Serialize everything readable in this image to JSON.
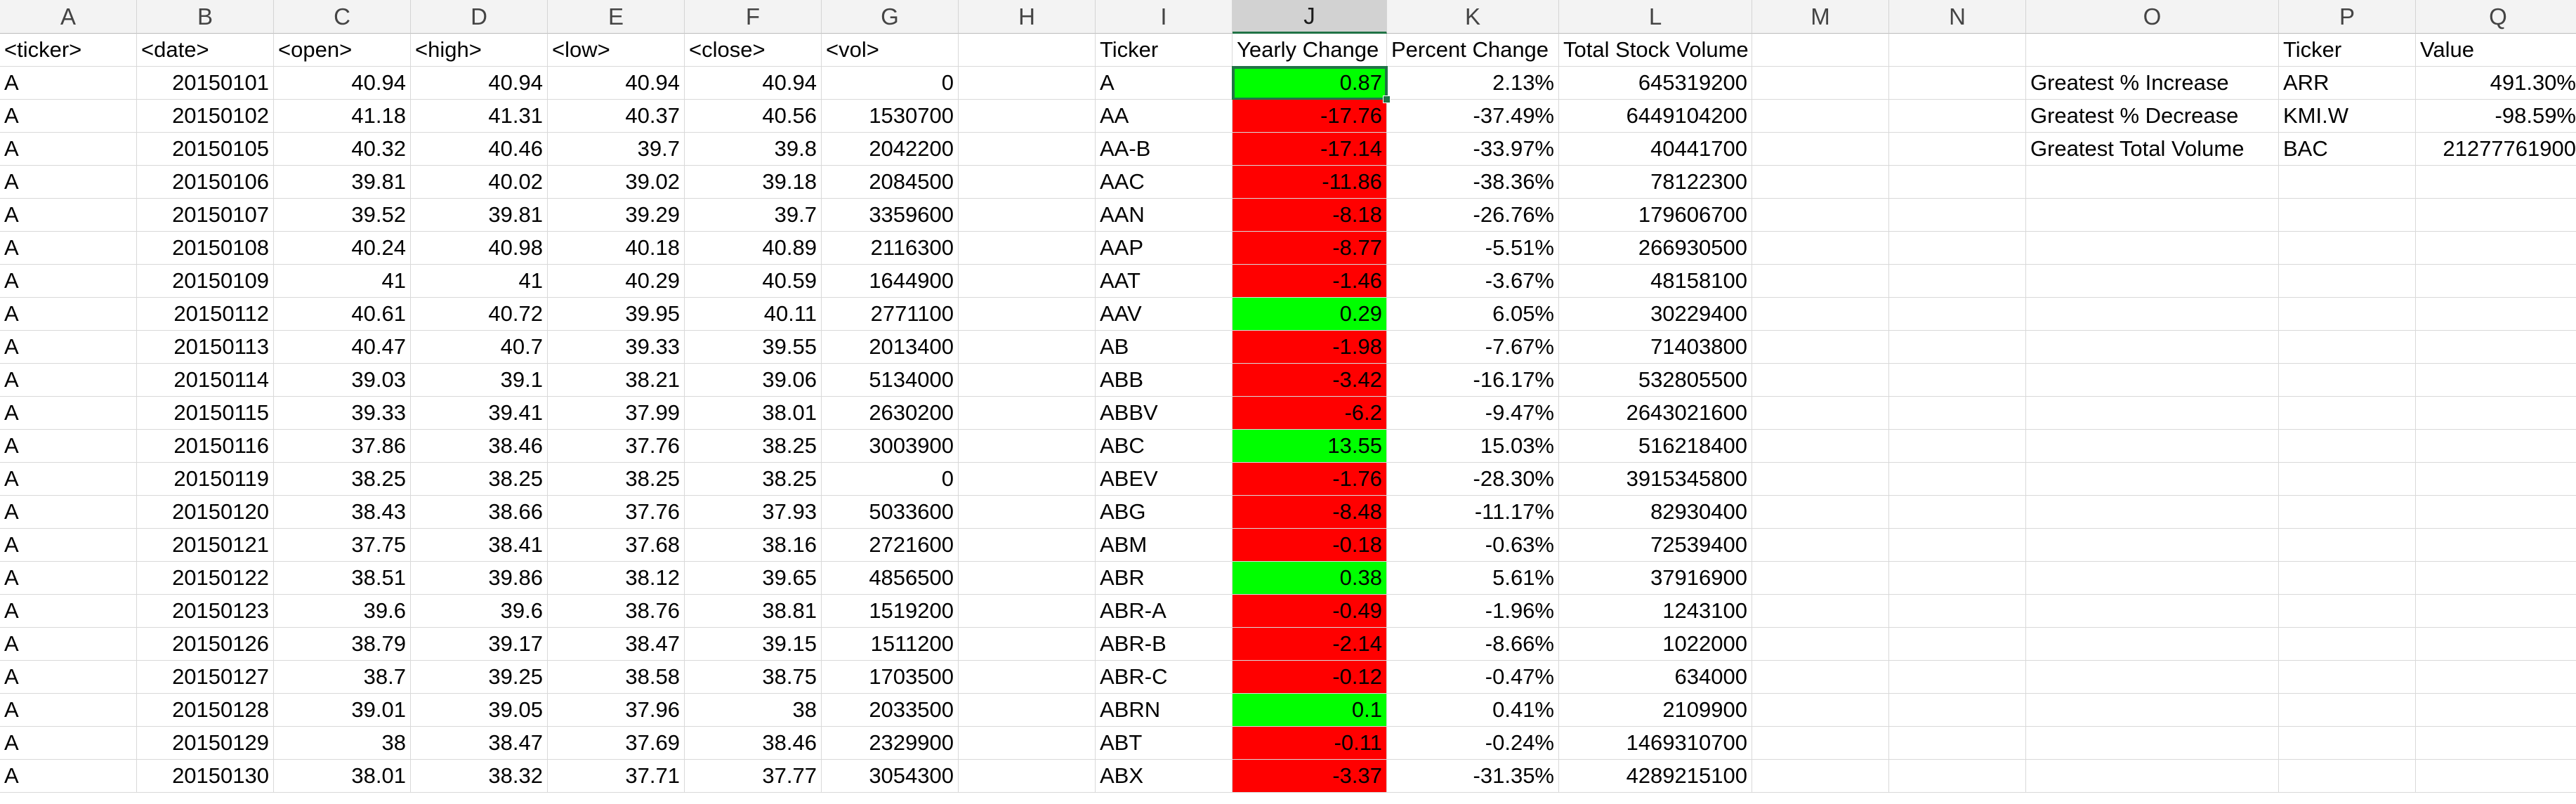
{
  "column_headers": [
    "A",
    "B",
    "C",
    "D",
    "E",
    "F",
    "G",
    "H",
    "I",
    "J",
    "K",
    "L",
    "M",
    "N",
    "O",
    "P",
    "Q"
  ],
  "selected_column": "J",
  "active_cell": "J2",
  "colors": {
    "positive": "#00ff00",
    "negative": "#ff0000",
    "selection": "#217346"
  },
  "raw_data": {
    "headers": [
      "<ticker>",
      "<date>",
      "<open>",
      "<high>",
      "<low>",
      "<close>",
      "<vol>"
    ],
    "rows": [
      [
        "A",
        "20150101",
        "40.94",
        "40.94",
        "40.94",
        "40.94",
        "0"
      ],
      [
        "A",
        "20150102",
        "41.18",
        "41.31",
        "40.37",
        "40.56",
        "1530700"
      ],
      [
        "A",
        "20150105",
        "40.32",
        "40.46",
        "39.7",
        "39.8",
        "2042200"
      ],
      [
        "A",
        "20150106",
        "39.81",
        "40.02",
        "39.02",
        "39.18",
        "2084500"
      ],
      [
        "A",
        "20150107",
        "39.52",
        "39.81",
        "39.29",
        "39.7",
        "3359600"
      ],
      [
        "A",
        "20150108",
        "40.24",
        "40.98",
        "40.18",
        "40.89",
        "2116300"
      ],
      [
        "A",
        "20150109",
        "41",
        "41",
        "40.29",
        "40.59",
        "1644900"
      ],
      [
        "A",
        "20150112",
        "40.61",
        "40.72",
        "39.95",
        "40.11",
        "2771100"
      ],
      [
        "A",
        "20150113",
        "40.47",
        "40.7",
        "39.33",
        "39.55",
        "2013400"
      ],
      [
        "A",
        "20150114",
        "39.03",
        "39.1",
        "38.21",
        "39.06",
        "5134000"
      ],
      [
        "A",
        "20150115",
        "39.33",
        "39.41",
        "37.99",
        "38.01",
        "2630200"
      ],
      [
        "A",
        "20150116",
        "37.86",
        "38.46",
        "37.76",
        "38.25",
        "3003900"
      ],
      [
        "A",
        "20150119",
        "38.25",
        "38.25",
        "38.25",
        "38.25",
        "0"
      ],
      [
        "A",
        "20150120",
        "38.43",
        "38.66",
        "37.76",
        "37.93",
        "5033600"
      ],
      [
        "A",
        "20150121",
        "37.75",
        "38.41",
        "37.68",
        "38.16",
        "2721600"
      ],
      [
        "A",
        "20150122",
        "38.51",
        "39.86",
        "38.12",
        "39.65",
        "4856500"
      ],
      [
        "A",
        "20150123",
        "39.6",
        "39.6",
        "38.76",
        "38.81",
        "1519200"
      ],
      [
        "A",
        "20150126",
        "38.79",
        "39.17",
        "38.47",
        "39.15",
        "1511200"
      ],
      [
        "A",
        "20150127",
        "38.7",
        "39.25",
        "38.58",
        "38.75",
        "1703500"
      ],
      [
        "A",
        "20150128",
        "39.01",
        "39.05",
        "37.96",
        "38",
        "2033500"
      ],
      [
        "A",
        "20150129",
        "38",
        "38.47",
        "37.69",
        "38.46",
        "2329900"
      ],
      [
        "A",
        "20150130",
        "38.01",
        "38.32",
        "37.71",
        "37.77",
        "3054300"
      ]
    ]
  },
  "summary": {
    "headers": [
      "Ticker",
      "Yearly Change",
      "Percent Change",
      "Total Stock Volume"
    ],
    "rows": [
      {
        "ticker": "A",
        "change": "0.87",
        "percent": "2.13%",
        "volume": "645319200",
        "positive": true
      },
      {
        "ticker": "AA",
        "change": "-17.76",
        "percent": "-37.49%",
        "volume": "6449104200",
        "positive": false
      },
      {
        "ticker": "AA-B",
        "change": "-17.14",
        "percent": "-33.97%",
        "volume": "40441700",
        "positive": false
      },
      {
        "ticker": "AAC",
        "change": "-11.86",
        "percent": "-38.36%",
        "volume": "78122300",
        "positive": false
      },
      {
        "ticker": "AAN",
        "change": "-8.18",
        "percent": "-26.76%",
        "volume": "179606700",
        "positive": false
      },
      {
        "ticker": "AAP",
        "change": "-8.77",
        "percent": "-5.51%",
        "volume": "266930500",
        "positive": false
      },
      {
        "ticker": "AAT",
        "change": "-1.46",
        "percent": "-3.67%",
        "volume": "48158100",
        "positive": false
      },
      {
        "ticker": "AAV",
        "change": "0.29",
        "percent": "6.05%",
        "volume": "30229400",
        "positive": true
      },
      {
        "ticker": "AB",
        "change": "-1.98",
        "percent": "-7.67%",
        "volume": "71403800",
        "positive": false
      },
      {
        "ticker": "ABB",
        "change": "-3.42",
        "percent": "-16.17%",
        "volume": "532805500",
        "positive": false
      },
      {
        "ticker": "ABBV",
        "change": "-6.2",
        "percent": "-9.47%",
        "volume": "2643021600",
        "positive": false
      },
      {
        "ticker": "ABC",
        "change": "13.55",
        "percent": "15.03%",
        "volume": "516218400",
        "positive": true
      },
      {
        "ticker": "ABEV",
        "change": "-1.76",
        "percent": "-28.30%",
        "volume": "3915345800",
        "positive": false
      },
      {
        "ticker": "ABG",
        "change": "-8.48",
        "percent": "-11.17%",
        "volume": "82930400",
        "positive": false
      },
      {
        "ticker": "ABM",
        "change": "-0.18",
        "percent": "-0.63%",
        "volume": "72539400",
        "positive": false
      },
      {
        "ticker": "ABR",
        "change": "0.38",
        "percent": "5.61%",
        "volume": "37916900",
        "positive": true
      },
      {
        "ticker": "ABR-A",
        "change": "-0.49",
        "percent": "-1.96%",
        "volume": "1243100",
        "positive": false
      },
      {
        "ticker": "ABR-B",
        "change": "-2.14",
        "percent": "-8.66%",
        "volume": "1022000",
        "positive": false
      },
      {
        "ticker": "ABR-C",
        "change": "-0.12",
        "percent": "-0.47%",
        "volume": "634000",
        "positive": false
      },
      {
        "ticker": "ABRN",
        "change": "0.1",
        "percent": "0.41%",
        "volume": "2109900",
        "positive": true
      },
      {
        "ticker": "ABT",
        "change": "-0.11",
        "percent": "-0.24%",
        "volume": "1469310700",
        "positive": false
      },
      {
        "ticker": "ABX",
        "change": "-3.37",
        "percent": "-31.35%",
        "volume": "4289215100",
        "positive": false
      }
    ]
  },
  "greatest": {
    "headers": [
      "Ticker",
      "Value"
    ],
    "rows": [
      {
        "label": "Greatest % Increase",
        "ticker": "ARR",
        "value": "491.30%"
      },
      {
        "label": "Greatest % Decrease",
        "ticker": "KMI.W",
        "value": "-98.59%"
      },
      {
        "label": "Greatest Total Volume",
        "ticker": "BAC",
        "value": "21277761900"
      }
    ]
  }
}
